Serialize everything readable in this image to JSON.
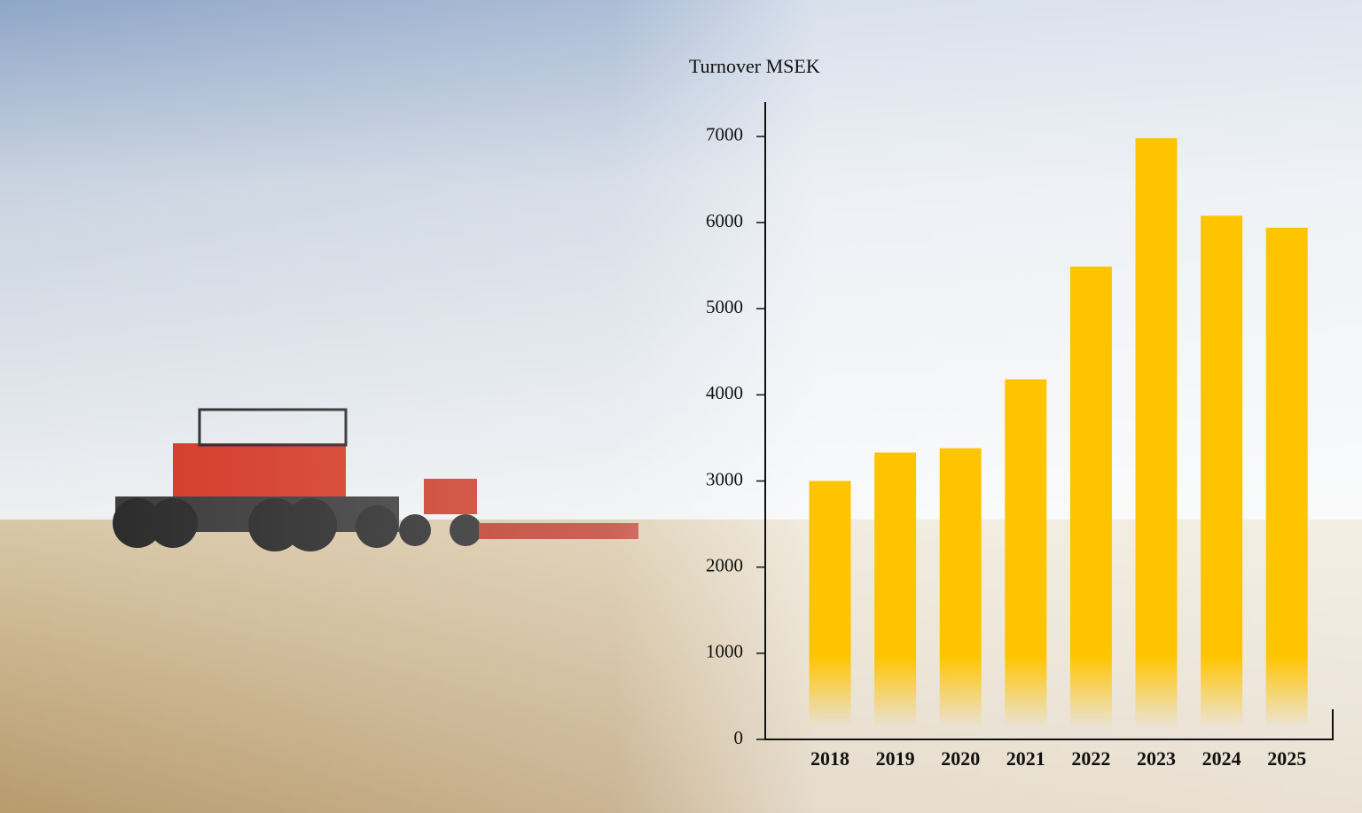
{
  "chart_data": {
    "type": "bar",
    "title": "Turnover MSEK",
    "categories": [
      "2018",
      "2019",
      "2020",
      "2021",
      "2022",
      "2023",
      "2024",
      "2025"
    ],
    "values": [
      3000,
      3330,
      3380,
      4180,
      5490,
      6980,
      6080,
      5940
    ],
    "color": "#ffc400",
    "ylim": [
      0,
      7400
    ],
    "yticks": [
      0,
      1000,
      2000,
      3000,
      4000,
      5000,
      6000,
      7000
    ]
  }
}
